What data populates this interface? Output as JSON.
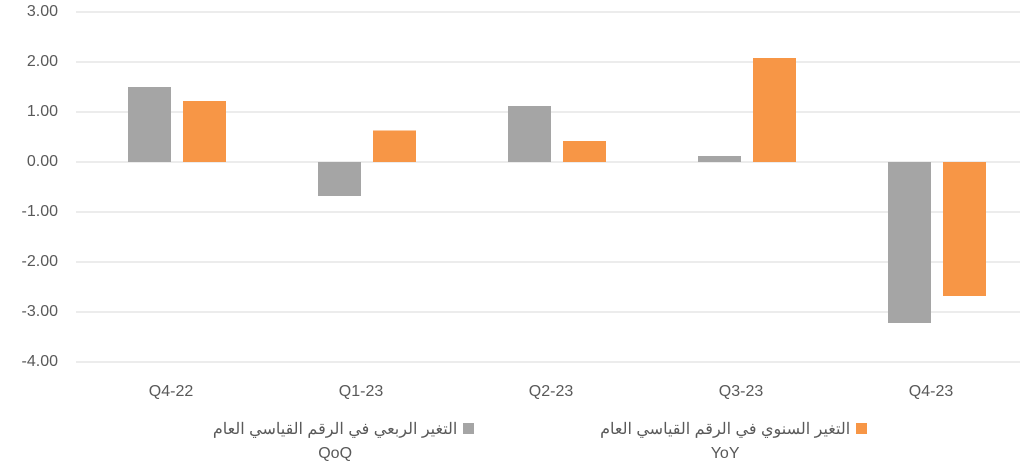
{
  "chart_data": {
    "type": "bar",
    "categories": [
      "Q4-22",
      "Q1-23",
      "Q2-23",
      "Q3-23",
      "Q4-23"
    ],
    "series": [
      {
        "name": "التغير الربعي  في الرقم القياسي العام\nQoQ",
        "color": "#a5a5a5",
        "values": [
          1.5,
          -0.68,
          1.12,
          0.12,
          -3.22
        ]
      },
      {
        "name": "التغير السنوي في الرقم القياسي العام\nYoY",
        "color": "#f79646",
        "values": [
          1.22,
          0.63,
          0.42,
          2.08,
          -2.68
        ]
      }
    ],
    "ylim": [
      -4,
      3
    ],
    "yticks": [
      {
        "value": -4,
        "label": "-4.00"
      },
      {
        "value": -3,
        "label": "-3.00"
      },
      {
        "value": -2,
        "label": "-2.00"
      },
      {
        "value": -1,
        "label": "-1.00"
      },
      {
        "value": 0,
        "label": "0.00"
      },
      {
        "value": 1,
        "label": "1.00"
      },
      {
        "value": 2,
        "label": "2.00"
      },
      {
        "value": 3,
        "label": "3.00"
      }
    ],
    "grid": true,
    "legend": "bottom"
  }
}
